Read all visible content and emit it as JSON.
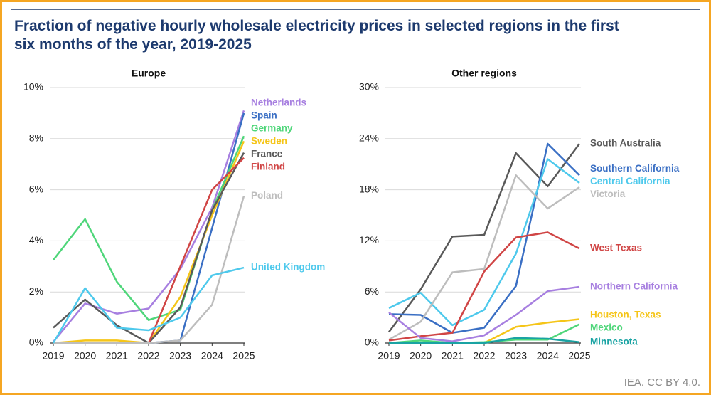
{
  "title": "Fraction of negative hourly wholesale electricity prices in selected regions in the first six months of the year, 2019-2025",
  "source": "IEA. CC BY 4.0.",
  "chart_data": [
    {
      "type": "line",
      "title": "Europe",
      "x": [
        2019,
        2020,
        2021,
        2022,
        2023,
        2024,
        2025
      ],
      "xlim": [
        2019,
        2025
      ],
      "xticks": [
        2019,
        2020,
        2021,
        2022,
        2023,
        2024,
        2025
      ],
      "ylim": [
        0,
        10
      ],
      "yticks": [
        {
          "value": 0,
          "label": "0%"
        },
        {
          "value": 2,
          "label": "2%"
        },
        {
          "value": 4,
          "label": "4%"
        },
        {
          "value": 6,
          "label": "6%"
        },
        {
          "value": 8,
          "label": "8%"
        },
        {
          "value": 10,
          "label": "10%"
        }
      ],
      "grid": true,
      "series": [
        {
          "name": "Netherlands",
          "color": "#a77fe0",
          "values": [
            0.05,
            1.55,
            1.15,
            1.35,
            2.9,
            5.3,
            9.1
          ]
        },
        {
          "name": "Spain",
          "color": "#3a6fc4",
          "values": [
            0,
            0,
            0,
            0,
            0.1,
            4.5,
            9.0
          ]
        },
        {
          "name": "Germany",
          "color": "#4fd67a",
          "values": [
            3.25,
            4.85,
            2.4,
            0.9,
            1.3,
            5.2,
            8.1
          ]
        },
        {
          "name": "Sweden",
          "color": "#f5c518",
          "values": [
            0,
            0.1,
            0.1,
            0,
            1.8,
            5.0,
            7.9
          ]
        },
        {
          "name": "France",
          "color": "#595959",
          "values": [
            0.6,
            1.7,
            0.7,
            0,
            1.4,
            5.2,
            7.45
          ]
        },
        {
          "name": "Finland",
          "color": "#d04545",
          "values": [
            0,
            0,
            0,
            0,
            3.0,
            6.0,
            7.25
          ]
        },
        {
          "name": "Poland",
          "color": "#bdbdbd",
          "values": [
            0,
            0,
            0,
            0,
            0.1,
            1.5,
            5.75
          ]
        },
        {
          "name": "United Kingdom",
          "color": "#4ec9ec",
          "values": [
            0,
            2.15,
            0.6,
            0.5,
            1.0,
            2.65,
            2.95
          ]
        }
      ]
    },
    {
      "type": "line",
      "title": "Other regions",
      "x": [
        2019,
        2020,
        2021,
        2022,
        2023,
        2024,
        2025
      ],
      "xlim": [
        2019,
        2025
      ],
      "xticks": [
        2019,
        2020,
        2021,
        2022,
        2023,
        2024,
        2025
      ],
      "ylim": [
        0,
        30
      ],
      "yticks": [
        {
          "value": 0,
          "label": "0%"
        },
        {
          "value": 6,
          "label": "6%"
        },
        {
          "value": 12,
          "label": "12%"
        },
        {
          "value": 18,
          "label": "18%"
        },
        {
          "value": 24,
          "label": "24%"
        },
        {
          "value": 30,
          "label": "30%"
        }
      ],
      "grid": true,
      "series": [
        {
          "name": "South Australia",
          "color": "#595959",
          "values": [
            1.3,
            6.3,
            12.5,
            12.7,
            22.3,
            18.4,
            23.4
          ]
        },
        {
          "name": "Southern California",
          "color": "#3a6fc4",
          "values": [
            3.4,
            3.3,
            1.2,
            1.8,
            6.7,
            23.4,
            19.7
          ]
        },
        {
          "name": "Central California",
          "color": "#4ec9ec",
          "values": [
            4.1,
            5.9,
            2.1,
            3.9,
            10.5,
            21.6,
            18.8
          ]
        },
        {
          "name": "Victoria",
          "color": "#bdbdbd",
          "values": [
            0.4,
            2.5,
            8.3,
            8.7,
            19.7,
            15.8,
            18.3
          ]
        },
        {
          "name": "West Texas",
          "color": "#d04545",
          "values": [
            0.3,
            0.8,
            1.2,
            8.4,
            12.4,
            13.0,
            11.1
          ]
        },
        {
          "name": "Northern California",
          "color": "#a77fe0",
          "values": [
            3.6,
            0.6,
            0.2,
            0.9,
            3.3,
            6.1,
            6.6
          ]
        },
        {
          "name": "Houston, Texas",
          "color": "#f5c518",
          "values": [
            0,
            0,
            0,
            0,
            1.9,
            2.4,
            2.8
          ]
        },
        {
          "name": "Mexico",
          "color": "#4fd67a",
          "values": [
            0,
            0.3,
            0,
            0.1,
            0.4,
            0.4,
            2.2
          ]
        },
        {
          "name": "Minnesota",
          "color": "#1aa3a3",
          "values": [
            0,
            0,
            0,
            0,
            0.6,
            0.5,
            0.1
          ]
        }
      ]
    }
  ]
}
